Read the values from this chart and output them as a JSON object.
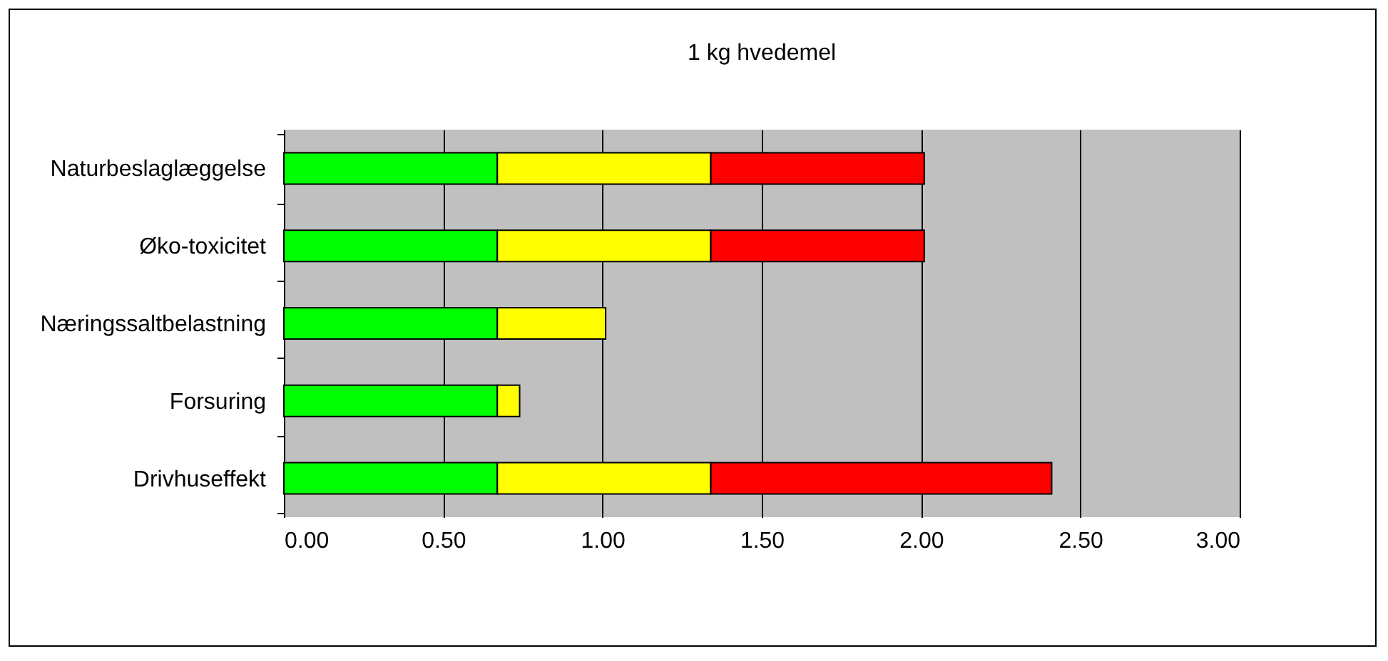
{
  "chart_data": {
    "type": "bar",
    "title": "1 kg hvedemel",
    "orientation": "horizontal",
    "stacked": true,
    "categories": [
      "Naturbeslaglæggelse",
      "Øko-toxicitet",
      "Næringssaltbelastning",
      "Forsuring",
      "Drivhuseffekt"
    ],
    "series": [
      {
        "color": "#00ff00",
        "values": [
          0.67,
          0.67,
          0.67,
          0.67,
          0.67
        ]
      },
      {
        "color": "#ffff00",
        "values": [
          0.67,
          0.67,
          0.34,
          0.07,
          0.67
        ]
      },
      {
        "color": "#ff0000",
        "values": [
          0.67,
          0.67,
          null,
          null,
          1.07
        ]
      }
    ],
    "xlim": [
      0,
      3
    ],
    "xticks": [
      {
        "value": 0,
        "label": "0.00"
      },
      {
        "value": 0.5,
        "label": "0.50"
      },
      {
        "value": 1,
        "label": "1.00"
      },
      {
        "value": 1.5,
        "label": "1.50"
      },
      {
        "value": 2,
        "label": "2.00"
      },
      {
        "value": 2.5,
        "label": "2.50"
      },
      {
        "value": 3,
        "label": "3.00"
      }
    ],
    "grid": "x",
    "legend": false
  }
}
